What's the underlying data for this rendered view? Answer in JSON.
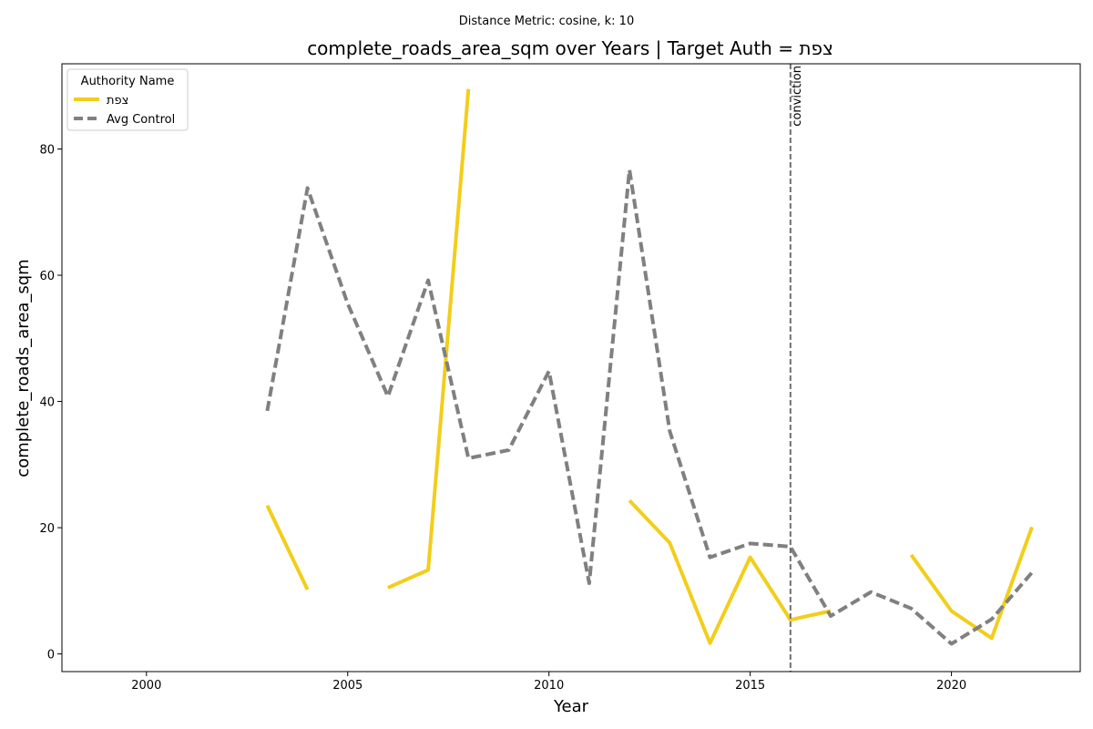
{
  "chart_data": {
    "type": "line",
    "suptitle": "Distance Metric: cosine, k: 10",
    "title": "complete_roads_area_sqm over Years | Target Auth = צפת",
    "xlabel": "Year",
    "ylabel": "complete_roads_area_sqm",
    "xlim": [
      1997.9,
      2023.2
    ],
    "ylim": [
      -2.8,
      93.5
    ],
    "xticks": [
      2000,
      2005,
      2010,
      2015,
      2020
    ],
    "yticks": [
      0,
      20,
      40,
      60,
      80
    ],
    "grid": false,
    "legend": {
      "title": "Authority Name",
      "placement": "top-left"
    },
    "series": [
      {
        "name": "צפת",
        "color": "#F2CE1B",
        "style": "solid",
        "x": [
          2003,
          2004,
          2005,
          2006,
          2007,
          2008,
          2009,
          2010,
          2011,
          2012,
          2013,
          2014,
          2015,
          2016,
          2017,
          2018,
          2019,
          2020,
          2021,
          2022
        ],
        "y": [
          23.5,
          10.2,
          null,
          10.5,
          13.3,
          89.5,
          null,
          null,
          null,
          24.3,
          17.6,
          1.7,
          15.3,
          5.4,
          6.8,
          null,
          15.7,
          6.8,
          2.5,
          20.1
        ]
      },
      {
        "name": "Avg Control",
        "color": "#808080",
        "style": "dashed",
        "x": [
          2003,
          2004,
          2005,
          2006,
          2007,
          2008,
          2009,
          2010,
          2011,
          2012,
          2013,
          2014,
          2015,
          2016,
          2017,
          2018,
          2019,
          2020,
          2021,
          2022
        ],
        "y": [
          38.5,
          73.8,
          55.5,
          40.8,
          59.2,
          31.0,
          32.3,
          44.8,
          11.2,
          76.7,
          35.3,
          15.3,
          17.5,
          17.0,
          6.0,
          9.8,
          7.2,
          1.6,
          5.5,
          12.9
        ]
      }
    ],
    "annotations": [
      {
        "type": "vline",
        "x": 2016,
        "label": "conviction",
        "color": "#707070"
      }
    ]
  }
}
